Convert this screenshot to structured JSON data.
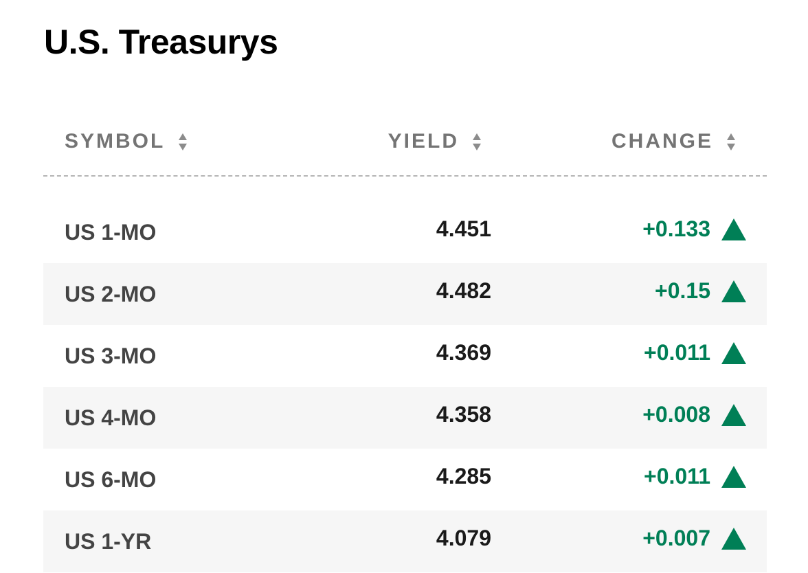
{
  "title": "U.S. Treasurys",
  "colors": {
    "positive": "#007f56",
    "header_text": "#747474",
    "symbol_text": "#444444",
    "value_text": "#1a1a1a",
    "alt_row_bg": "#f6f6f6"
  },
  "columns": [
    {
      "label": "SYMBOL",
      "sort_icon": "sort-arrows-icon"
    },
    {
      "label": "YIELD",
      "sort_icon": "sort-arrows-icon"
    },
    {
      "label": "CHANGE",
      "sort_icon": "sort-arrows-icon"
    }
  ],
  "rows": [
    {
      "symbol": "US 1-MO",
      "yield": "4.451",
      "change": "+0.133",
      "direction": "up"
    },
    {
      "symbol": "US 2-MO",
      "yield": "4.482",
      "change": "+0.15",
      "direction": "up"
    },
    {
      "symbol": "US 3-MO",
      "yield": "4.369",
      "change": "+0.011",
      "direction": "up"
    },
    {
      "symbol": "US 4-MO",
      "yield": "4.358",
      "change": "+0.008",
      "direction": "up"
    },
    {
      "symbol": "US 6-MO",
      "yield": "4.285",
      "change": "+0.011",
      "direction": "up"
    },
    {
      "symbol": "US 1-YR",
      "yield": "4.079",
      "change": "+0.007",
      "direction": "up"
    }
  ]
}
